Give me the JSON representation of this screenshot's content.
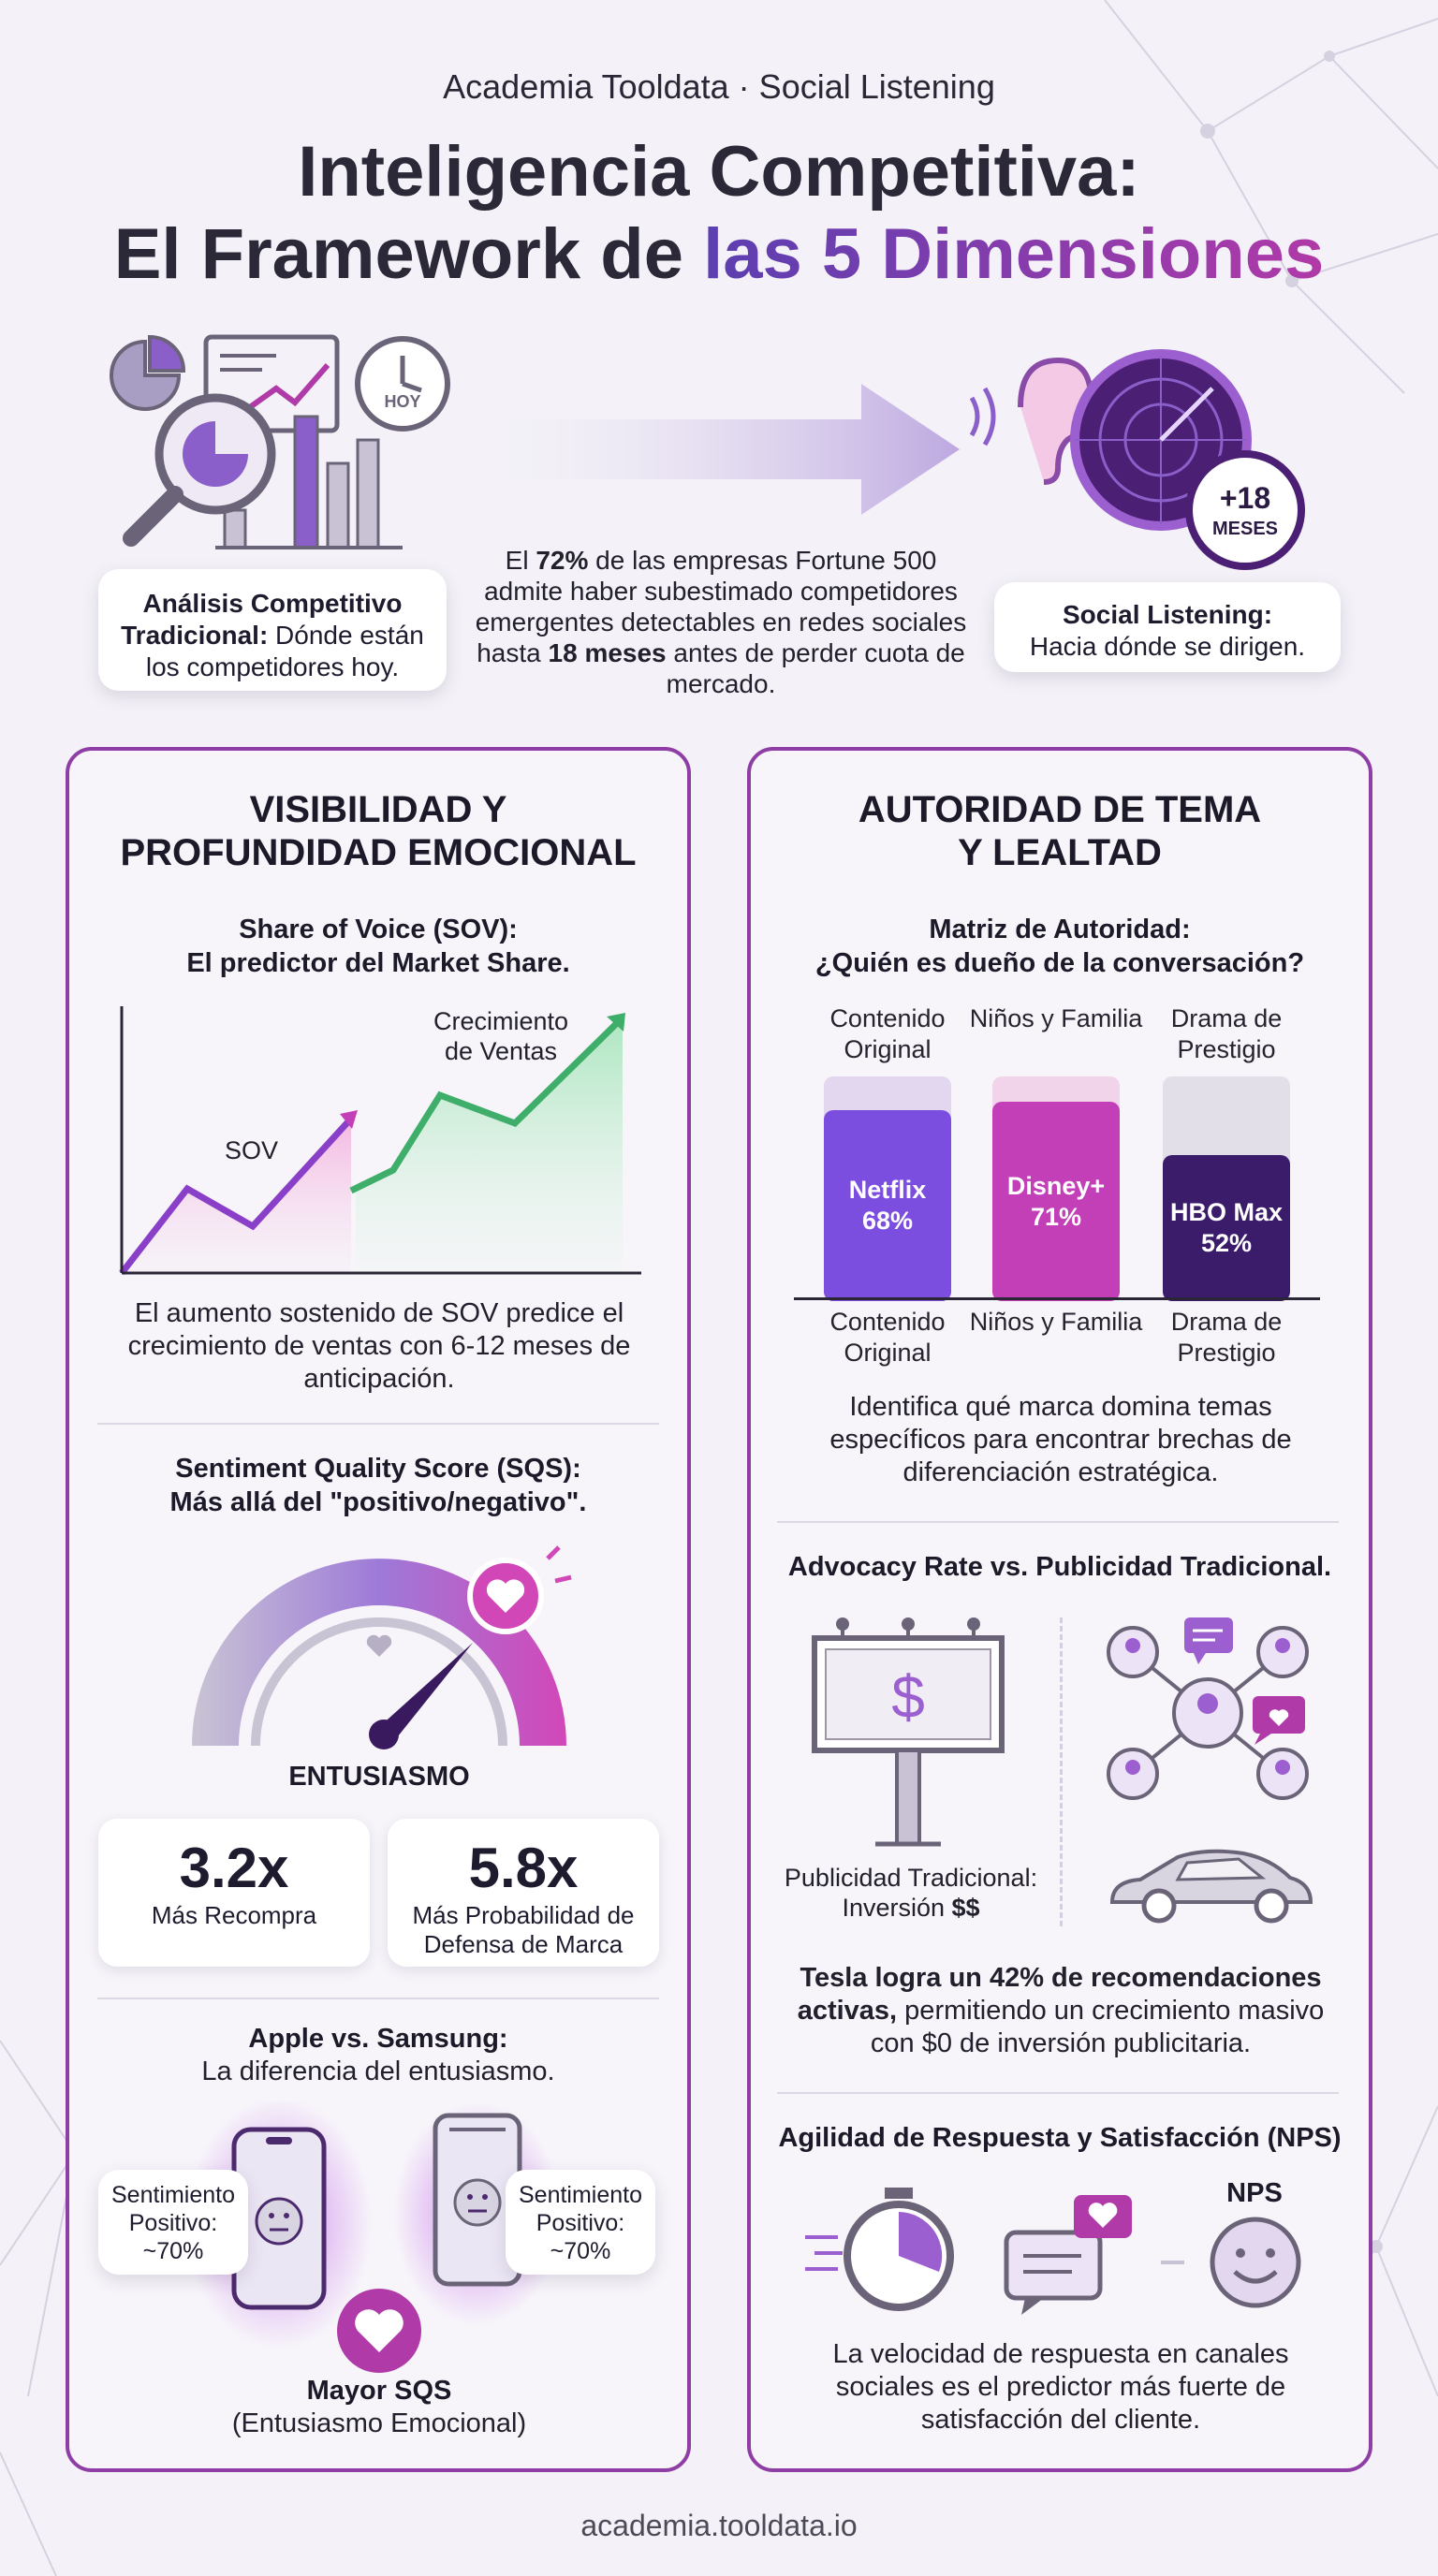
{
  "header": {
    "brand": "Academia Tooldata · Social Listening",
    "title_line1": "Inteligencia Competitiva:",
    "title_line2_plain": "El Framework de ",
    "title_line2_accent": "las 5 Dimensiones"
  },
  "intro": {
    "hoy_label": "HOY",
    "meses_value": "+18",
    "meses_label": "MESES",
    "traditional_bold": "Análisis Competitivo Tradicional:",
    "traditional_text": " Dónde están los competidores hoy.",
    "stat_pre": "El ",
    "stat_pct": "72%",
    "stat_mid": " de las empresas Fortune 500 admite haber subestimado competidores emergentes detectables en redes sociales hasta ",
    "stat_months": "18 meses",
    "stat_post": " antes de perder cuota de mercado.",
    "listening_bold": "Social Listening:",
    "listening_text": "Hacia dónde se dirigen."
  },
  "left_panel": {
    "title_line1": "VISIBILIDAD Y",
    "title_line2": "PROFUNDIDAD EMOCIONAL",
    "sov": {
      "heading_line1": "Share of Voice (SOV):",
      "heading_line2": "El predictor del Market Share.",
      "label_sov": "SOV",
      "label_growth_line1": "Crecimiento",
      "label_growth_line2": "de Ventas",
      "caption": "El aumento sostenido de SOV predice el crecimiento de ventas con 6-12 meses de anticipación."
    },
    "sqs": {
      "heading_line1": "Sentiment Quality Score (SQS):",
      "heading_line2": "Más allá del \"positivo/negativo\".",
      "gauge_label": "ENTUSIASMO",
      "stats": [
        {
          "value": "3.2x",
          "label": "Más Recompra"
        },
        {
          "value": "5.8x",
          "label": "Más Probabilidad de Defensa de Marca"
        }
      ]
    },
    "apple": {
      "heading_line1": "Apple vs. Samsung:",
      "heading_line2": "La diferencia del entusiasmo.",
      "left_bubble": "Sentimiento Positivo: ~70%",
      "right_bubble": "Sentimiento Positivo: ~70%",
      "result_bold": "Mayor SQS",
      "result_text": "(Entusiasmo Emocional)"
    }
  },
  "right_panel": {
    "title_line1": "AUTORIDAD DE TEMA",
    "title_line2": "Y LEALTAD",
    "matrix": {
      "heading_line1": "Matriz de Autoridad:",
      "heading_line2": "¿Quién es dueño de la conversación?",
      "caption": "Identifica qué marca domina temas específicos para encontrar brechas de diferenciación estratégica."
    },
    "advocacy": {
      "heading": "Advocacy Rate vs. Publicidad Tradicional.",
      "billboard_symbol": "$",
      "trad_label": "Publicidad Tradicional:",
      "trad_invest": "Inversión ",
      "trad_invest_bold": "$$",
      "tesla_bold": "Tesla logra un 42% de recomendaciones activas,",
      "tesla_text": " permitiendo un crecimiento masivo con $0 de inversión publicitaria."
    },
    "nps": {
      "heading": "Agilidad de Respuesta y Satisfacción (NPS)",
      "nps_label": "NPS",
      "caption": "La velocidad de respuesta en canales sociales es el predictor más fuerte de satisfacción del cliente."
    }
  },
  "chart_data": {
    "type": "bar",
    "categories": [
      "Contenido Original",
      "Niños y Familia",
      "Drama de Prestigio"
    ],
    "series": [
      {
        "name": "",
        "values": [
          68,
          71,
          52
        ],
        "brands": [
          "Netflix",
          "Disney+",
          "HBO Max"
        ],
        "labels": [
          "68%",
          "71%",
          "52%"
        ]
      }
    ],
    "colors": [
      "#7b4ee0",
      "#c23fb8",
      "#3b1c6b"
    ],
    "ylim": [
      0,
      100
    ]
  },
  "footer": {
    "url": "academia.tooldata.io"
  }
}
